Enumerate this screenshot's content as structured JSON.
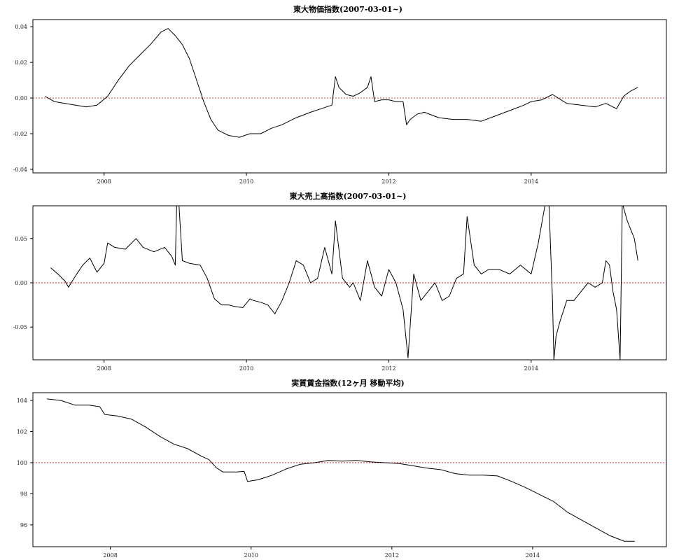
{
  "chart_data": [
    {
      "type": "line",
      "title": "東大物価指数(2007-03-01~)",
      "xlabel": "",
      "ylabel": "",
      "xlim": [
        2007.0,
        2015.9
      ],
      "ylim": [
        -0.042,
        0.044
      ],
      "x_ticks": [
        2008,
        2010,
        2012,
        2014
      ],
      "x_tick_labels": [
        "2008",
        "2010",
        "2012",
        "2014"
      ],
      "y_ticks": [
        -0.04,
        -0.02,
        0.0,
        0.02,
        0.04
      ],
      "y_tick_labels": [
        "-0.04",
        "-0.02",
        "0.00",
        "0.02",
        "0.04"
      ],
      "reference_line": {
        "y": 0.0,
        "color": "#e02020",
        "style": "dotted"
      },
      "grid": false,
      "series": [
        {
          "x": [
            2007.17,
            2007.3,
            2007.45,
            2007.6,
            2007.75,
            2007.9,
            2008.05,
            2008.2,
            2008.35,
            2008.5,
            2008.65,
            2008.8,
            2008.9,
            2009.0,
            2009.1,
            2009.2,
            2009.3,
            2009.4,
            2009.5,
            2009.6,
            2009.75,
            2009.9,
            2010.05,
            2010.2,
            2010.35,
            2010.5,
            2010.7,
            2010.9,
            2011.05,
            2011.2,
            2011.25,
            2011.3,
            2011.4,
            2011.5,
            2011.6,
            2011.7,
            2011.75,
            2011.8,
            2011.9,
            2012.0,
            2012.1,
            2012.2,
            2012.25,
            2012.3,
            2012.4,
            2012.5,
            2012.7,
            2012.9,
            2013.1,
            2013.3,
            2013.5,
            2013.7,
            2013.9,
            2014.0,
            2014.15,
            2014.3,
            2014.5,
            2014.7,
            2014.9,
            2015.05,
            2015.2,
            2015.3,
            2015.4,
            2015.5
          ],
          "values": [
            0.001,
            -0.002,
            -0.003,
            -0.004,
            -0.005,
            -0.004,
            0.001,
            0.01,
            0.018,
            0.024,
            0.03,
            0.037,
            0.039,
            0.035,
            0.03,
            0.022,
            0.01,
            -0.002,
            -0.012,
            -0.018,
            -0.021,
            -0.022,
            -0.02,
            -0.02,
            -0.017,
            -0.015,
            -0.011,
            -0.008,
            -0.006,
            -0.004,
            0.012,
            0.006,
            0.002,
            0.001,
            0.003,
            0.006,
            0.012,
            -0.002,
            -0.001,
            -0.001,
            -0.002,
            -0.002,
            -0.015,
            -0.012,
            -0.009,
            -0.008,
            -0.011,
            -0.012,
            -0.012,
            -0.013,
            -0.01,
            -0.007,
            -0.004,
            -0.002,
            -0.001,
            0.002,
            -0.003,
            -0.004,
            -0.005,
            -0.003,
            -0.006,
            0.001,
            0.004,
            0.006
          ]
        }
      ]
    },
    {
      "type": "line",
      "title": "東大売上高指数(2007-03-01~)",
      "xlabel": "",
      "ylabel": "",
      "xlim": [
        2007.0,
        2015.9
      ],
      "ylim": [
        -0.087,
        0.087
      ],
      "x_ticks": [
        2008,
        2010,
        2012,
        2014
      ],
      "x_tick_labels": [
        "2008",
        "2010",
        "2012",
        "2014"
      ],
      "y_ticks": [
        -0.05,
        0.0,
        0.05
      ],
      "y_tick_labels": [
        "-0.05",
        "0.00",
        "0.05"
      ],
      "reference_line": {
        "y": 0.0,
        "color": "#e02020",
        "style": "dotted"
      },
      "grid": false,
      "series": [
        {
          "x": [
            2007.25,
            2007.35,
            2007.45,
            2007.5,
            2007.6,
            2007.7,
            2007.8,
            2007.9,
            2008.0,
            2008.05,
            2008.15,
            2008.3,
            2008.45,
            2008.55,
            2008.7,
            2008.85,
            2008.95,
            2009.0,
            2009.02,
            2009.05,
            2009.1,
            2009.2,
            2009.35,
            2009.45,
            2009.55,
            2009.65,
            2009.75,
            2009.85,
            2009.95,
            2010.05,
            2010.1,
            2010.2,
            2010.3,
            2010.4,
            2010.5,
            2010.6,
            2010.7,
            2010.8,
            2010.9,
            2011.0,
            2011.1,
            2011.2,
            2011.25,
            2011.35,
            2011.45,
            2011.5,
            2011.6,
            2011.7,
            2011.8,
            2011.9,
            2012.0,
            2012.1,
            2012.2,
            2012.27,
            2012.35,
            2012.45,
            2012.55,
            2012.65,
            2012.75,
            2012.85,
            2012.95,
            2013.05,
            2013.1,
            2013.2,
            2013.3,
            2013.4,
            2013.55,
            2013.7,
            2013.85,
            2014.0,
            2014.1,
            2014.2,
            2014.25,
            2014.3,
            2014.32,
            2014.35,
            2014.4,
            2014.5,
            2014.6,
            2014.7,
            2014.8,
            2014.9,
            2015.0,
            2015.05,
            2015.1,
            2015.15,
            2015.2,
            2015.25,
            2015.28,
            2015.35,
            2015.45,
            2015.5
          ],
          "values": [
            0.017,
            0.01,
            0.002,
            -0.005,
            0.008,
            0.02,
            0.028,
            0.012,
            0.022,
            0.045,
            0.04,
            0.038,
            0.05,
            0.04,
            0.035,
            0.04,
            0.03,
            0.02,
            0.09,
            0.09,
            0.025,
            0.022,
            0.02,
            0.005,
            -0.018,
            -0.025,
            -0.025,
            -0.027,
            -0.028,
            -0.018,
            -0.02,
            -0.022,
            -0.025,
            -0.035,
            -0.02,
            0.0,
            0.025,
            0.02,
            0.0,
            0.005,
            0.04,
            0.01,
            0.07,
            0.005,
            -0.005,
            0.0,
            -0.02,
            0.025,
            -0.005,
            -0.015,
            0.015,
            0.0,
            -0.03,
            -0.085,
            0.01,
            -0.02,
            -0.01,
            0.0,
            -0.02,
            -0.015,
            0.005,
            0.01,
            0.075,
            0.02,
            0.01,
            0.015,
            0.015,
            0.01,
            0.02,
            0.01,
            0.045,
            0.09,
            0.09,
            -0.02,
            -0.087,
            -0.06,
            -0.045,
            -0.02,
            -0.02,
            -0.01,
            0.0,
            -0.005,
            0.0,
            0.025,
            0.02,
            -0.01,
            -0.03,
            -0.087,
            0.09,
            0.07,
            0.05,
            0.025
          ]
        }
      ]
    },
    {
      "type": "line",
      "title": "実質賃金指数(12ヶ月 移動平均)",
      "xlabel": "",
      "ylabel": "",
      "xlim": [
        2006.9,
        2015.9
      ],
      "ylim": [
        94.6,
        104.5
      ],
      "x_ticks": [
        2008,
        2010,
        2012,
        2014
      ],
      "x_tick_labels": [
        "2008",
        "2010",
        "2012",
        "2014"
      ],
      "y_ticks": [
        96,
        98,
        100,
        102,
        104
      ],
      "y_tick_labels": [
        "96",
        "98",
        "100",
        "102",
        "104"
      ],
      "reference_line": {
        "y": 100,
        "color": "#e02020",
        "style": "dotted"
      },
      "grid": false,
      "series": [
        {
          "x": [
            2007.1,
            2007.3,
            2007.5,
            2007.7,
            2007.85,
            2007.92,
            2008.1,
            2008.3,
            2008.5,
            2008.7,
            2008.9,
            2009.1,
            2009.3,
            2009.4,
            2009.5,
            2009.6,
            2009.8,
            2009.9,
            2009.95,
            2010.1,
            2010.3,
            2010.5,
            2010.7,
            2010.9,
            2011.1,
            2011.3,
            2011.5,
            2011.7,
            2011.9,
            2012.1,
            2012.3,
            2012.5,
            2012.7,
            2012.9,
            2013.1,
            2013.3,
            2013.5,
            2013.7,
            2013.9,
            2014.1,
            2014.3,
            2014.5,
            2014.7,
            2014.9,
            2015.1,
            2015.3,
            2015.45
          ],
          "values": [
            104.1,
            104.0,
            103.7,
            103.7,
            103.6,
            103.1,
            103.0,
            102.8,
            102.3,
            101.7,
            101.2,
            100.9,
            100.4,
            100.2,
            99.7,
            99.4,
            99.4,
            99.45,
            98.8,
            98.9,
            99.2,
            99.6,
            99.9,
            100.0,
            100.15,
            100.1,
            100.15,
            100.05,
            100.0,
            99.95,
            99.8,
            99.65,
            99.55,
            99.3,
            99.2,
            99.2,
            99.15,
            98.8,
            98.4,
            97.95,
            97.5,
            96.8,
            96.3,
            95.8,
            95.3,
            94.95,
            94.95
          ]
        }
      ]
    }
  ]
}
